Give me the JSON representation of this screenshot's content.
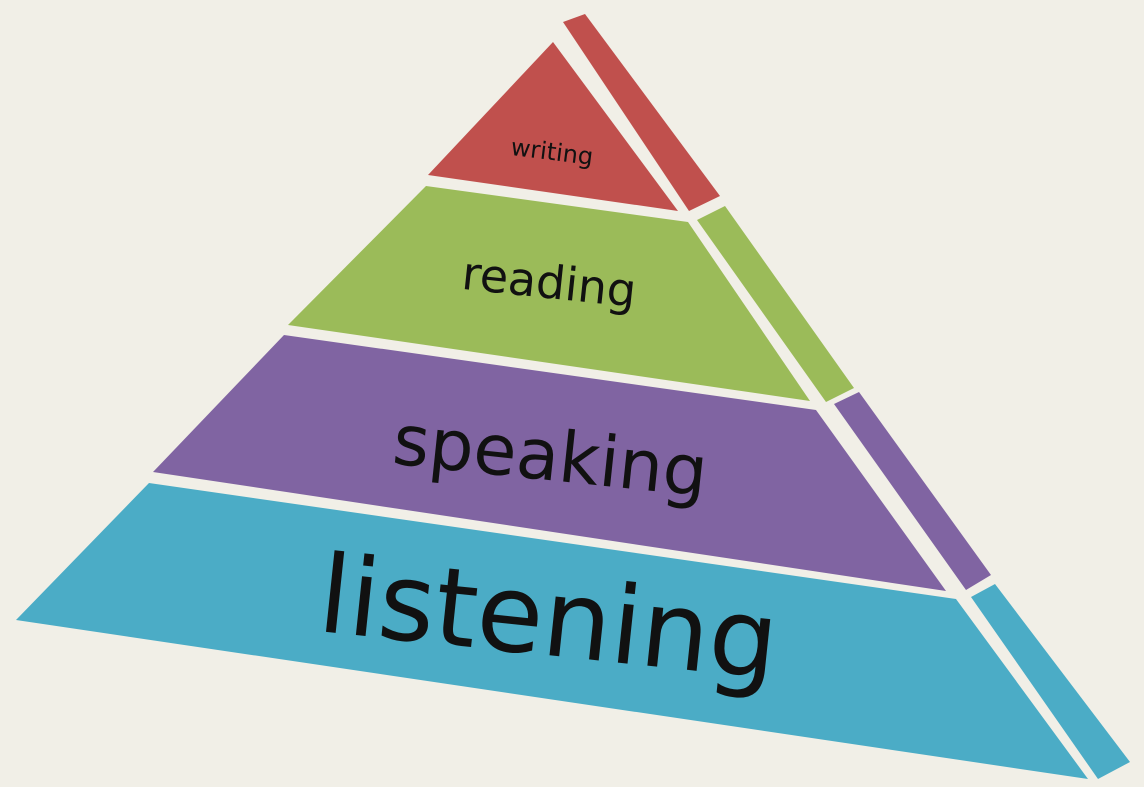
{
  "diagram": {
    "background_color": "#f1efe7",
    "separator_color": "#ffffff",
    "tiers": [
      {
        "label": "writing",
        "front_color": "#c0504d",
        "side_color": "#c0504d"
      },
      {
        "label": "reading",
        "front_color": "#9bbb59",
        "side_color": "#9bbb59"
      },
      {
        "label": "speaking",
        "front_color": "#8064a2",
        "side_color": "#8064a2"
      },
      {
        "label": "listening",
        "front_color": "#4bacc6",
        "side_color": "#4bacc6"
      }
    ]
  }
}
